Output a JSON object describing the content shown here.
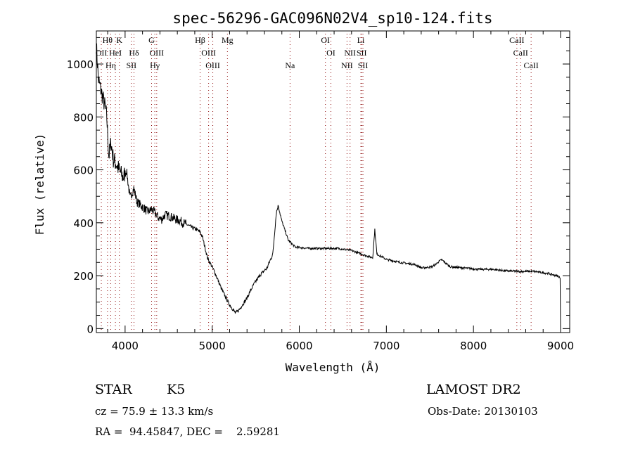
{
  "chart_data": {
    "type": "line",
    "title": "spec-56296-GAC096N02V4_sp10-124.fits",
    "xlabel": "Wavelength (Å)",
    "ylabel": "Flux (relative)",
    "xlim": [
      3670,
      9105
    ],
    "ylim": [
      -15,
      1125
    ],
    "xticks": [
      4000,
      5000,
      6000,
      7000,
      8000,
      9000
    ],
    "yticks": [
      0,
      200,
      400,
      600,
      800,
      1000
    ],
    "grid": false,
    "series": [
      {
        "name": "spectrum",
        "x": [
          3670,
          3694,
          3733,
          3774,
          3790,
          3814,
          3838,
          3865,
          3895,
          3935,
          3976,
          4016,
          4057,
          4100,
          4137,
          4178,
          4220,
          4258,
          4300,
          4339,
          4380,
          4420,
          4460,
          4500,
          4540,
          4582,
          4620,
          4662,
          4700,
          4743,
          4780,
          4823,
          4860,
          4888,
          4945,
          5026,
          5107,
          5187,
          5268,
          5308,
          5390,
          5470,
          5551,
          5630,
          5696,
          5737,
          5760,
          5793,
          5874,
          5954,
          6116,
          6278,
          6439,
          6600,
          6762,
          6843,
          6867,
          6891,
          7004,
          7165,
          7327,
          7408,
          7529,
          7634,
          7730,
          7892,
          8054,
          8215,
          8376,
          8538,
          8700,
          8861,
          8982,
          8995,
          9000
        ],
        "y": [
          1070,
          940,
          887,
          834,
          795,
          650,
          703,
          640,
          624,
          597,
          571,
          597,
          492,
          530,
          479,
          466,
          455,
          440,
          450,
          440,
          420,
          413,
          430,
          426,
          420,
          413,
          410,
          400,
          395,
          387,
          380,
          374,
          365,
          347,
          268,
          216,
          150,
          97,
          58,
          71,
          110,
          163,
          203,
          229,
          282,
          440,
          466,
          413,
          334,
          308,
          303,
          303,
          303,
          295,
          276,
          268,
          374,
          282,
          261,
          250,
          242,
          229,
          234,
          261,
          234,
          229,
          224,
          224,
          218,
          216,
          216,
          208,
          197,
          190,
          0
        ]
      }
    ],
    "lines": [
      {
        "label": "Hθ",
        "wave": 3798,
        "row": 0
      },
      {
        "label": "K",
        "wave": 3934,
        "row": 0
      },
      {
        "label": "G",
        "wave": 4304,
        "row": 0
      },
      {
        "label": "Hβ",
        "wave": 4861,
        "row": 0
      },
      {
        "label": "Mg",
        "wave": 5175,
        "row": 0
      },
      {
        "label": "OI",
        "wave": 6300,
        "row": 0
      },
      {
        "label": "Li",
        "wave": 6707,
        "row": 0
      },
      {
        "label": "CaII",
        "wave": 8498,
        "row": 0
      },
      {
        "label": "OII",
        "wave": 3727,
        "row": 1
      },
      {
        "label": "HeI",
        "wave": 3889,
        "row": 1
      },
      {
        "label": "Hδ",
        "wave": 4102,
        "row": 1
      },
      {
        "label": "OIII",
        "wave": 4363,
        "row": 1
      },
      {
        "label": "OIII",
        "wave": 4959,
        "row": 1
      },
      {
        "label": "OI",
        "wave": 6363,
        "row": 1
      },
      {
        "label": "NII",
        "wave": 6583,
        "row": 1
      },
      {
        "label": "SII",
        "wave": 6716,
        "row": 1
      },
      {
        "label": "CaII",
        "wave": 8542,
        "row": 1
      },
      {
        "label": "Hη",
        "wave": 3835,
        "row": 2
      },
      {
        "label": "SII",
        "wave": 4072,
        "row": 2
      },
      {
        "label": "Hγ",
        "wave": 4341,
        "row": 2
      },
      {
        "label": "OIII",
        "wave": 5007,
        "row": 2
      },
      {
        "label": "Na",
        "wave": 5894,
        "row": 2
      },
      {
        "label": "NII",
        "wave": 6548,
        "row": 2
      },
      {
        "label": "SII",
        "wave": 6731,
        "row": 2
      },
      {
        "label": "CaII",
        "wave": 8662,
        "row": 2
      }
    ],
    "line_color": "#8b0000"
  },
  "info": {
    "class": "STAR",
    "subclass": "K5",
    "survey": "LAMOST DR2",
    "cz": "cz = 75.9 ± 13.3 km/s",
    "obs_date": "Obs-Date: 20130103",
    "coords": "RA =  94.45847, DEC =    2.59281"
  }
}
